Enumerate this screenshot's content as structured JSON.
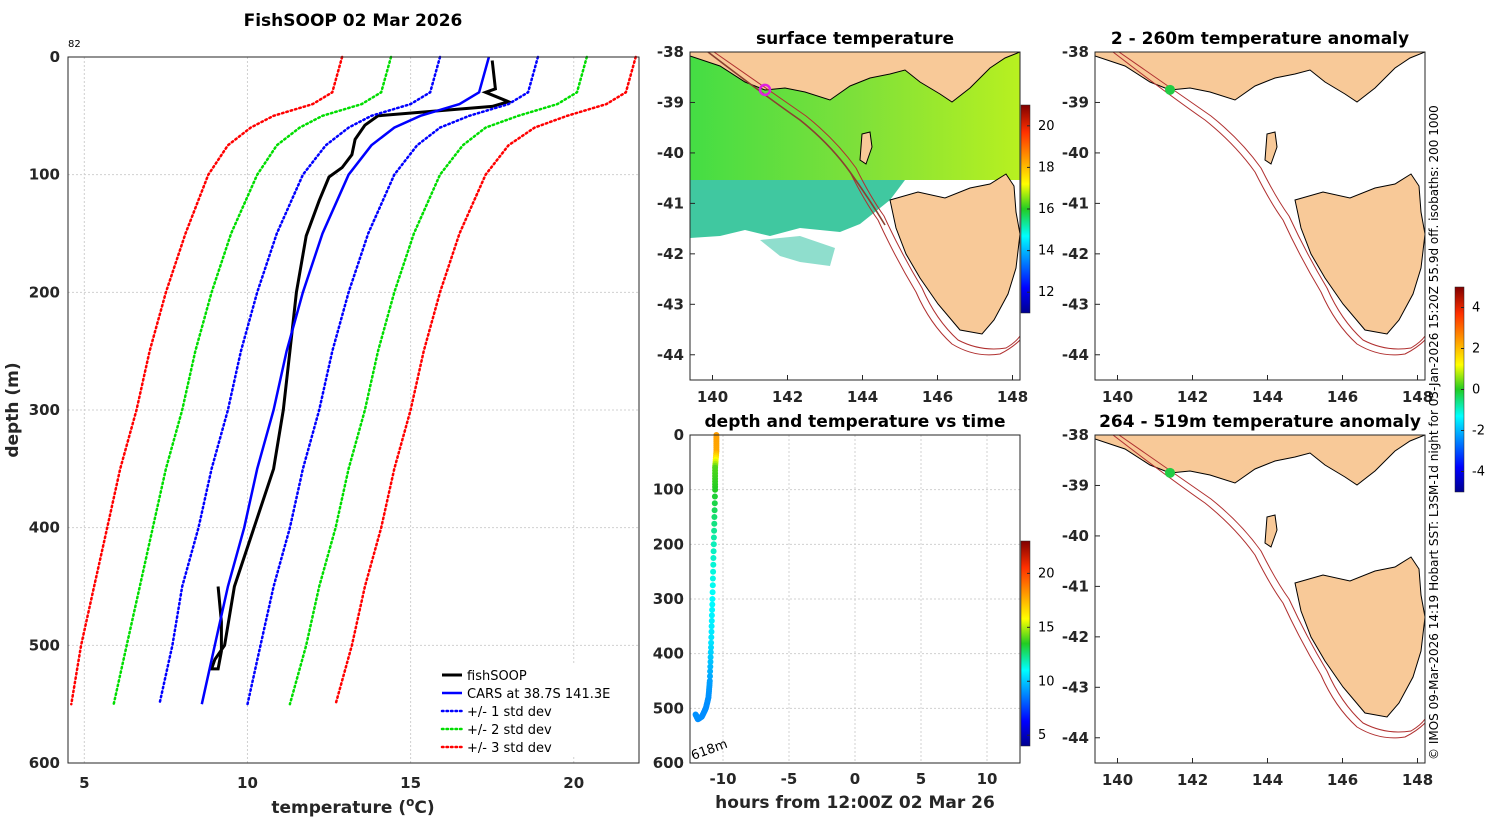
{
  "chart_data": [
    {
      "type": "line",
      "title": "FishSOOP 02 Mar 2026",
      "xlabel": "temperature (",
      "xlabel_sup": "o",
      "xlabel_end": "C)",
      "ylabel": "depth (m)",
      "corner_label": "82",
      "xlim": [
        4.5,
        22
      ],
      "ylim": [
        0,
        600
      ],
      "xticks": [
        5,
        10,
        15,
        20
      ],
      "yticks": [
        0,
        100,
        200,
        300,
        400,
        500,
        600
      ],
      "depths": [
        0,
        30,
        40,
        50,
        60,
        75,
        100,
        150,
        200,
        250,
        300,
        350,
        400,
        450,
        500,
        550
      ],
      "series": [
        {
          "name": "fishSOOP",
          "color": "#000000",
          "style": "solid",
          "width": 3,
          "points": [
            [
              17.5,
              3
            ],
            [
              17.6,
              27
            ],
            [
              17.3,
              30
            ],
            [
              18.0,
              38
            ],
            [
              17.5,
              42
            ],
            [
              14.0,
              50
            ],
            [
              13.6,
              58
            ],
            [
              13.3,
              70
            ],
            [
              13.2,
              83
            ],
            [
              12.9,
              94
            ],
            [
              12.5,
              102
            ],
            [
              12.2,
              122
            ],
            [
              11.8,
              152
            ],
            [
              11.5,
              200
            ],
            [
              11.3,
              250
            ],
            [
              11.1,
              300
            ],
            [
              10.8,
              350
            ],
            [
              10.2,
              400
            ],
            [
              9.6,
              450
            ],
            [
              9.3,
              500
            ],
            [
              9.0,
              512
            ],
            [
              8.9,
              520
            ],
            [
              9.1,
              520
            ],
            [
              9.2,
              505
            ],
            [
              9.2,
              480
            ],
            [
              9.1,
              450
            ]
          ]
        },
        {
          "name": "CARS at 38.7S 141.3E",
          "color": "#0000ff",
          "style": "solid",
          "width": 2.5,
          "values": [
            17.4,
            17.1,
            16.5,
            15.3,
            14.5,
            13.8,
            13.1,
            12.3,
            11.7,
            11.2,
            10.8,
            10.3,
            9.9,
            9.4,
            9.0,
            8.6
          ]
        },
        {
          "name": "+/- 1 std dev",
          "color": "#0000ff",
          "style": "dotted",
          "width": 2.5,
          "lower": [
            15.9,
            15.6,
            15.0,
            13.8,
            13.1,
            12.4,
            11.7,
            10.9,
            10.3,
            9.8,
            9.4,
            8.9,
            8.5,
            8.0,
            7.7,
            7.3
          ],
          "upper": [
            18.9,
            18.6,
            18.0,
            16.8,
            15.9,
            15.2,
            14.5,
            13.7,
            13.1,
            12.6,
            12.2,
            11.7,
            11.3,
            10.8,
            10.4,
            10.0
          ]
        },
        {
          "name": "+/- 2 std dev",
          "color": "#00dd00",
          "style": "dotted",
          "width": 2.5,
          "lower": [
            14.4,
            14.1,
            13.5,
            12.3,
            11.6,
            10.9,
            10.3,
            9.5,
            8.9,
            8.4,
            8.0,
            7.5,
            7.1,
            6.7,
            6.3,
            5.9
          ],
          "upper": [
            20.4,
            20.1,
            19.5,
            18.3,
            17.3,
            16.6,
            15.9,
            15.1,
            14.5,
            14.0,
            13.6,
            13.1,
            12.7,
            12.2,
            11.8,
            11.3
          ]
        },
        {
          "name": "+/- 3 std dev",
          "color": "#ff0000",
          "style": "dotted",
          "width": 2.5,
          "lower": [
            12.9,
            12.6,
            12.0,
            10.8,
            10.1,
            9.4,
            8.8,
            8.1,
            7.5,
            7.0,
            6.6,
            6.1,
            5.7,
            5.3,
            4.9,
            4.6
          ],
          "upper": [
            21.9,
            21.6,
            21.0,
            19.8,
            18.8,
            18.0,
            17.3,
            16.5,
            15.9,
            15.4,
            15.0,
            14.5,
            14.1,
            13.6,
            13.2,
            12.7
          ]
        }
      ]
    },
    {
      "type": "heatmap",
      "title": "surface temperature",
      "xlim": [
        139.4,
        148.2
      ],
      "ylim": [
        -44.5,
        -38
      ],
      "xticks": [
        140,
        142,
        144,
        146,
        148
      ],
      "yticks": [
        -38,
        -39,
        -40,
        -41,
        -42,
        -43,
        -44
      ],
      "colorbar_ticks": [
        12,
        14,
        16,
        18,
        20
      ],
      "colorbar_range": [
        11,
        21
      ]
    },
    {
      "type": "scatter",
      "title": "depth and temperature vs time",
      "xlabel": "hours from 12:00Z 02 Mar 26",
      "xlim": [
        -12.5,
        12.5
      ],
      "ylim": [
        0,
        600
      ],
      "xticks": [
        -10,
        -5,
        0,
        5,
        10
      ],
      "yticks": [
        0,
        100,
        200,
        300,
        400,
        500,
        600
      ],
      "annotation": "618m",
      "colorbar_ticks": [
        5,
        10,
        15,
        20
      ],
      "colorbar_range": [
        4,
        23
      ],
      "points": [
        [
          -10.5,
          0,
          18
        ],
        [
          -10.5,
          30,
          17.8
        ],
        [
          -10.6,
          60,
          14
        ],
        [
          -10.6,
          100,
          13.5
        ],
        [
          -10.7,
          200,
          11.8
        ],
        [
          -10.8,
          300,
          11
        ],
        [
          -10.9,
          380,
          10.5
        ],
        [
          -11.0,
          450,
          9.3
        ],
        [
          -11.1,
          480,
          9.0
        ],
        [
          -11.3,
          500,
          8.9
        ],
        [
          -11.6,
          515,
          8.9
        ],
        [
          -11.9,
          520,
          8.9
        ],
        [
          -12.1,
          510,
          9.0
        ]
      ]
    },
    {
      "type": "heatmap",
      "title": "2 - 260m temperature anomaly",
      "xlim": [
        139.4,
        148.2
      ],
      "ylim": [
        -44.5,
        -38
      ],
      "xticks": [
        140,
        142,
        144,
        146,
        148
      ],
      "yticks": [
        -38,
        -39,
        -40,
        -41,
        -42,
        -43,
        -44
      ],
      "colorbar_ticks": [
        4,
        2,
        0,
        -2,
        -4
      ],
      "colorbar_range": [
        -5,
        5
      ],
      "station": [
        141.4,
        -38.75
      ]
    },
    {
      "type": "heatmap",
      "title": "264 - 519m temperature anomaly",
      "xlim": [
        139.4,
        148.2
      ],
      "ylim": [
        -44.5,
        -38
      ],
      "xticks": [
        140,
        142,
        144,
        146,
        148
      ],
      "yticks": [
        -38,
        -39,
        -40,
        -41,
        -42,
        -43,
        -44
      ],
      "station": [
        141.4,
        -38.75
      ]
    }
  ],
  "side_caption": "© IMOS 09-Mar-2026 14:19 Hobart SST: L3SM-1d night for 05-Jan-2026 15:20Z 55.9d off. isobaths: 200  1000",
  "colors": {
    "land": "#f8c998",
    "isobath": "#b03030",
    "station_marker": "#e020e0",
    "station_dot": "#22cc44"
  }
}
